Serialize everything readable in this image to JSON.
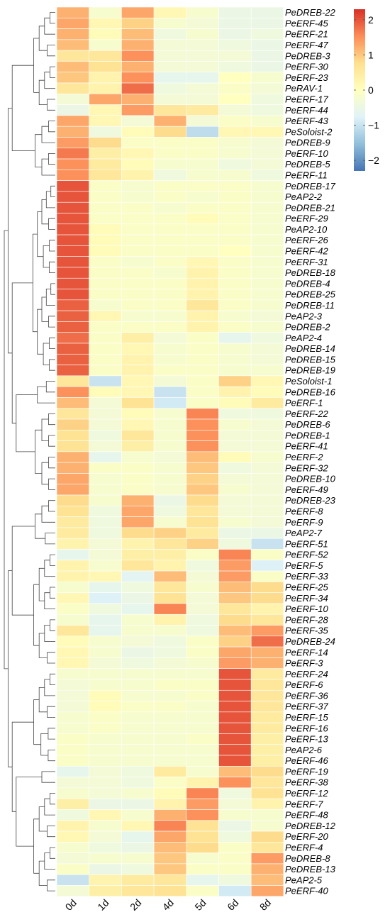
{
  "chart_data": {
    "type": "heatmap",
    "columns": [
      "0d",
      "1d",
      "2d",
      "4d",
      "5d",
      "6d",
      "8d"
    ],
    "rows": [
      "PeDREB-22",
      "PeERF-45",
      "PeERF-21",
      "PeERF-47",
      "PeDREB-3",
      "PeERF-30",
      "PeERF-23",
      "PeRAV-1",
      "PeERF-17",
      "PeERF-44",
      "PeERF-43",
      "PeSoloist-2",
      "PeDREB-9",
      "PeERF-10",
      "PeDREB-5",
      "PeERF-11",
      "PeDREB-17",
      "PeAP2-2",
      "PeDREB-21",
      "PeERF-29",
      "PeAP2-10",
      "PeERF-26",
      "PeERF-42",
      "PeERF-31",
      "PeDREB-18",
      "PeDREB-4",
      "PeDREB-25",
      "PeDREB-11",
      "PeAP2-3",
      "PeDREB-2",
      "PeAP2-4",
      "PeDREB-14",
      "PeDREB-15",
      "PeDREB-19",
      "PeSoloist-1",
      "PeDREB-16",
      "PeERF-1",
      "PeERF-22",
      "PeDREB-6",
      "PeDREB-1",
      "PeERF-41",
      "PeERF-2",
      "PeERF-32",
      "PeDREB-10",
      "PeERF-49",
      "PeDREB-23",
      "PeERF-8",
      "PeERF-9",
      "PeAP2-7",
      "PeERF-51",
      "PeERF-52",
      "PeERF-5",
      "PeERF-33",
      "PeERF-25",
      "PeERF-34",
      "PeERF-10",
      "PeERF-28",
      "PeERF-35",
      "PeDREB-24",
      "PeERF-14",
      "PeERF-3",
      "PeERF-24",
      "PeERF-6",
      "PeERF-36",
      "PeERF-37",
      "PeERF-15",
      "PeERF-16",
      "PeERF-13",
      "PeAP2-6",
      "PeERF-46",
      "PeERF-19",
      "PeERF-38",
      "PeERF-12",
      "PeERF-7",
      "PeERF-48",
      "PeDREB-12",
      "PeERF-20",
      "PeERF-4",
      "PeDREB-8",
      "PeDREB-13",
      "PeAP2-5",
      "PeERF-40"
    ],
    "values": [
      [
        1.2,
        -0.2,
        1.3,
        0.2,
        -0.2,
        -0.5,
        -0.5
      ],
      [
        1.3,
        0.2,
        0.9,
        -0.2,
        -0.3,
        -0.5,
        -0.5
      ],
      [
        1.2,
        0.1,
        1.1,
        -0.4,
        -0.2,
        -0.5,
        -0.4
      ],
      [
        1.1,
        -0.2,
        1.2,
        -0.3,
        -0.3,
        -0.4,
        -0.5
      ],
      [
        0.6,
        0.6,
        1.5,
        -0.3,
        -0.3,
        -0.3,
        -0.5
      ],
      [
        1.1,
        0.7,
        1.2,
        -0.3,
        -0.3,
        -0.4,
        -0.5
      ],
      [
        1.0,
        0.3,
        1.5,
        -0.6,
        -0.6,
        0.0,
        -0.2
      ],
      [
        0.6,
        0.3,
        1.8,
        -0.4,
        -0.3,
        -0.1,
        -0.3
      ],
      [
        -0.3,
        1.3,
        1.2,
        -0.3,
        -0.3,
        0.0,
        -0.4
      ],
      [
        -0.5,
        0.2,
        1.4,
        0.6,
        0.5,
        -0.3,
        -0.4
      ],
      [
        1.3,
        0.2,
        -0.3,
        1.2,
        -0.3,
        -0.1,
        -0.2
      ],
      [
        1.2,
        -0.4,
        0.1,
        0.8,
        -1.1,
        0.2,
        0.2
      ],
      [
        1.4,
        0.8,
        -0.1,
        -0.1,
        -0.1,
        -0.2,
        -0.3
      ],
      [
        1.7,
        0.4,
        0.2,
        -0.1,
        -0.1,
        -0.2,
        -0.3
      ],
      [
        1.5,
        0.5,
        0.1,
        -0.2,
        -0.2,
        -0.4,
        -0.3
      ],
      [
        1.5,
        0.6,
        0.3,
        -0.4,
        -0.2,
        -0.2,
        -0.4
      ],
      [
        2.0,
        -0.1,
        -0.2,
        -0.1,
        -0.1,
        -0.1,
        -0.2
      ],
      [
        2.0,
        -0.1,
        -0.2,
        -0.1,
        -0.2,
        -0.1,
        -0.2
      ],
      [
        2.0,
        -0.1,
        -0.1,
        -0.2,
        -0.1,
        -0.1,
        -0.2
      ],
      [
        2.0,
        -0.1,
        -0.1,
        -0.1,
        0.1,
        -0.1,
        -0.2
      ],
      [
        2.0,
        0.1,
        -0.1,
        -0.1,
        -0.1,
        -0.1,
        -0.2
      ],
      [
        2.0,
        0.1,
        -0.1,
        -0.1,
        -0.1,
        -0.1,
        -0.2
      ],
      [
        2.0,
        0.1,
        -0.1,
        -0.1,
        -0.1,
        0.0,
        -0.2
      ],
      [
        2.0,
        -0.1,
        -0.2,
        -0.1,
        0.2,
        -0.1,
        -0.2
      ],
      [
        2.0,
        -0.1,
        -0.1,
        -0.2,
        0.3,
        -0.1,
        -0.2
      ],
      [
        2.0,
        -0.1,
        -0.1,
        -0.1,
        0.3,
        -0.1,
        -0.2
      ],
      [
        2.0,
        -0.1,
        -0.1,
        -0.1,
        0.3,
        -0.1,
        -0.2
      ],
      [
        1.9,
        -0.2,
        -0.1,
        -0.1,
        0.6,
        -0.1,
        -0.2
      ],
      [
        1.9,
        0.2,
        -0.2,
        -0.2,
        0.3,
        -0.2,
        -0.3
      ],
      [
        1.9,
        -0.1,
        -0.1,
        -0.1,
        0.3,
        -0.1,
        -0.2
      ],
      [
        1.8,
        -0.1,
        0.4,
        -0.3,
        -0.1,
        -0.6,
        -0.4
      ],
      [
        1.9,
        -0.1,
        0.2,
        -0.2,
        -0.1,
        -0.2,
        -0.3
      ],
      [
        1.9,
        -0.1,
        0.3,
        -0.2,
        -0.1,
        -0.2,
        -0.3
      ],
      [
        1.9,
        -0.1,
        0.3,
        -0.1,
        -0.1,
        -0.2,
        -0.2
      ],
      [
        0.6,
        -1.0,
        0.2,
        -0.3,
        -0.1,
        0.9,
        0.2
      ],
      [
        1.5,
        0.1,
        0.2,
        -1.0,
        -0.1,
        0.3,
        0.1
      ],
      [
        1.1,
        -0.3,
        0.7,
        -0.9,
        -0.1,
        0.1,
        0.5
      ],
      [
        0.6,
        -0.3,
        0.1,
        -0.2,
        1.6,
        -0.4,
        -0.4
      ],
      [
        0.9,
        -0.3,
        0.2,
        -0.2,
        1.5,
        -0.2,
        -0.3
      ],
      [
        0.7,
        -0.4,
        0.6,
        -0.2,
        1.5,
        -0.3,
        -0.3
      ],
      [
        0.7,
        -0.3,
        0.4,
        -0.2,
        1.5,
        -0.3,
        -0.3
      ],
      [
        1.2,
        -0.6,
        -0.2,
        -0.3,
        1.1,
        0.1,
        -0.2
      ],
      [
        1.2,
        -0.1,
        -0.1,
        -0.2,
        1.0,
        -0.4,
        -0.3
      ],
      [
        1.3,
        -0.2,
        -0.1,
        -0.2,
        0.9,
        -0.3,
        -0.3
      ],
      [
        1.3,
        -0.2,
        -0.1,
        -0.2,
        1.0,
        -0.2,
        -0.3
      ],
      [
        0.8,
        -0.2,
        1.2,
        -0.5,
        0.8,
        -0.3,
        -0.3
      ],
      [
        0.7,
        -0.4,
        1.3,
        -0.4,
        0.6,
        -0.3,
        -0.3
      ],
      [
        0.5,
        -0.4,
        1.3,
        -0.2,
        0.7,
        -0.2,
        -0.3
      ],
      [
        0.5,
        -0.4,
        0.8,
        0.9,
        0.5,
        -0.5,
        -0.5
      ],
      [
        0.3,
        -0.3,
        0.3,
        0.6,
        0.9,
        -0.4,
        -1.0
      ],
      [
        -0.6,
        -0.3,
        0.4,
        0.4,
        -0.1,
        1.6,
        -0.1
      ],
      [
        0.3,
        -0.2,
        0.6,
        0.3,
        -0.4,
        1.4,
        -0.8
      ],
      [
        0.3,
        0.2,
        -0.7,
        1.1,
        -0.3,
        1.4,
        -0.1
      ],
      [
        -0.2,
        -0.6,
        -0.4,
        0.6,
        -0.2,
        1.1,
        0.8
      ],
      [
        0.2,
        -0.8,
        -0.5,
        0.7,
        -0.3,
        1.0,
        0.8
      ],
      [
        -0.1,
        -0.4,
        -0.6,
        1.6,
        -0.3,
        0.6,
        0.3
      ],
      [
        -0.2,
        -0.6,
        -0.2,
        0.3,
        -0.4,
        0.8,
        0.6
      ],
      [
        0.6,
        -0.6,
        -0.2,
        -0.2,
        -0.4,
        1.1,
        1.4
      ],
      [
        0.1,
        -0.2,
        -0.3,
        -0.4,
        -0.1,
        0.9,
        1.8
      ],
      [
        0.2,
        -0.2,
        -0.5,
        -0.4,
        -0.1,
        1.3,
        1.2
      ],
      [
        0.2,
        -0.3,
        -0.4,
        -0.3,
        -0.2,
        1.4,
        1.2
      ],
      [
        -0.2,
        -0.2,
        -0.2,
        -0.2,
        -0.2,
        2.0,
        0.5
      ],
      [
        -0.3,
        -0.2,
        -0.2,
        -0.1,
        -0.1,
        2.0,
        0.6
      ],
      [
        -0.3,
        0.1,
        -0.2,
        -0.2,
        -0.1,
        2.0,
        0.6
      ],
      [
        -0.3,
        0.1,
        -0.1,
        -0.1,
        -0.2,
        2.0,
        0.6
      ],
      [
        -0.2,
        -0.1,
        -0.2,
        -0.2,
        -0.2,
        2.0,
        0.5
      ],
      [
        -0.2,
        -0.1,
        -0.2,
        -0.2,
        -0.2,
        2.0,
        0.5
      ],
      [
        -0.1,
        -0.2,
        -0.2,
        -0.2,
        -0.1,
        2.0,
        0.4
      ],
      [
        -0.1,
        -0.2,
        -0.2,
        -0.2,
        -0.2,
        2.0,
        0.4
      ],
      [
        -0.1,
        -0.2,
        -0.2,
        -0.2,
        -0.2,
        2.0,
        0.4
      ],
      [
        -0.6,
        -0.3,
        -0.4,
        0.5,
        -0.2,
        1.1,
        0.8
      ],
      [
        -0.3,
        -0.3,
        -0.4,
        -0.1,
        0.3,
        1.5,
        0.6
      ],
      [
        -0.2,
        -0.3,
        -0.2,
        0.1,
        1.6,
        -0.4,
        0.7
      ],
      [
        0.4,
        -0.5,
        -0.5,
        0.3,
        1.4,
        -0.3,
        0.3
      ],
      [
        -0.4,
        0.2,
        -0.2,
        1.2,
        1.5,
        -0.2,
        -0.2
      ],
      [
        0.3,
        -0.2,
        0.2,
        1.6,
        0.7,
        -0.5,
        -0.2
      ],
      [
        0.2,
        -0.3,
        -0.6,
        1.3,
        0.7,
        -0.4,
        0.8
      ],
      [
        -0.2,
        -0.4,
        -0.5,
        1.1,
        0.8,
        -0.1,
        0.6
      ],
      [
        -0.3,
        -0.2,
        -0.2,
        1.0,
        -0.2,
        -0.1,
        1.4
      ],
      [
        -0.1,
        -0.5,
        -0.4,
        1.0,
        -0.1,
        -0.1,
        1.2
      ],
      [
        -1.0,
        0.3,
        0.5,
        0.6,
        -0.6,
        -0.4,
        1.1
      ],
      [
        -0.3,
        0.4,
        0.6,
        0.7,
        -0.1,
        -0.9,
        1.3
      ]
    ],
    "color_scale": {
      "min": -2.3,
      "max": 2.3,
      "colors": [
        "#4575b4",
        "#91bfdb",
        "#e0f3f8",
        "#ffffbf",
        "#fee090",
        "#fc8d59",
        "#d73027"
      ]
    },
    "legend": {
      "placement": "top-right",
      "ticks": [
        2,
        1,
        0,
        -1,
        -2
      ],
      "tick_labels": [
        "2",
        "1",
        "0",
        "−1",
        "−2"
      ]
    },
    "dendrogram": "left",
    "grid": false,
    "title": "",
    "xlabel": "",
    "ylabel": ""
  }
}
